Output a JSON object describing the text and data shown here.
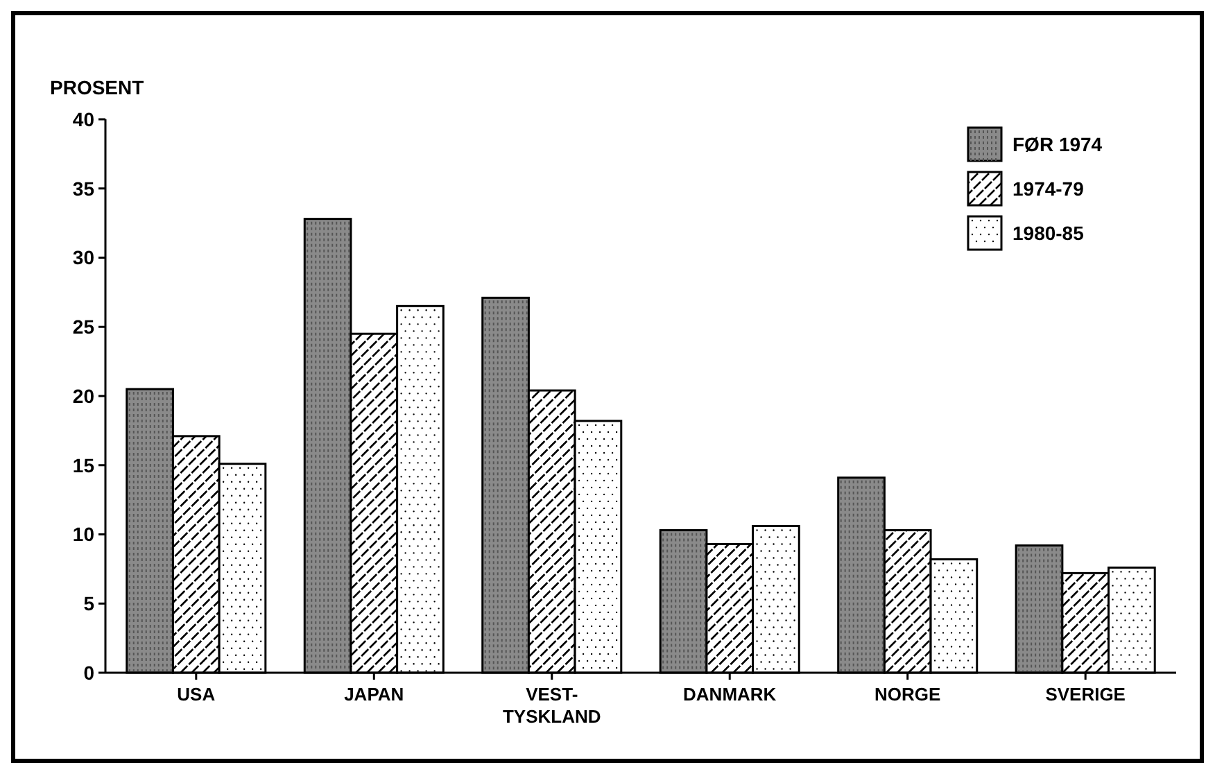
{
  "chart_data": {
    "type": "bar",
    "ylabel": "PROSENT",
    "categories": [
      "USA",
      "JAPAN",
      "VEST-TYSKLAND",
      "DANMARK",
      "NORGE",
      "SVERIGE"
    ],
    "series": [
      {
        "name": "FØR 1974",
        "color": "#8a8a8a",
        "values": [
          20.5,
          32.8,
          27.1,
          10.3,
          14.1,
          9.2
        ]
      },
      {
        "name": "1974-79",
        "color": "#ffffff",
        "values": [
          17.1,
          24.5,
          20.4,
          9.3,
          10.3,
          7.2
        ]
      },
      {
        "name": "1980-85",
        "color": "#ffffff",
        "values": [
          15.1,
          26.5,
          18.2,
          10.6,
          8.2,
          7.6
        ]
      }
    ],
    "ylim": [
      0,
      40
    ],
    "yticks": [
      0,
      5,
      10,
      15,
      20,
      25,
      30,
      35,
      40
    ],
    "grid": false,
    "legend": "top right"
  }
}
